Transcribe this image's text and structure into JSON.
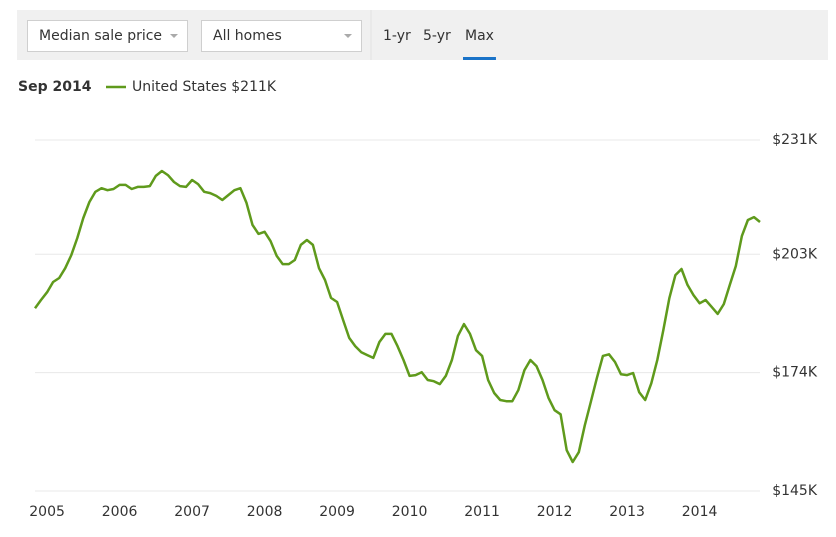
{
  "controls": {
    "metric": "Median sale price",
    "home_type": "All homes",
    "ranges": [
      "1-yr",
      "5-yr",
      "Max"
    ],
    "selected_range": 2
  },
  "chart_data": {
    "type": "line",
    "legend": {
      "date": "Sep 2014",
      "value_label": "$211K"
    },
    "categories": [
      null,
      null,
      "2005",
      null,
      null,
      null,
      null,
      null,
      null,
      null,
      null,
      null,
      null,
      null,
      "2006",
      null,
      null,
      null,
      null,
      null,
      null,
      null,
      null,
      null,
      null,
      null,
      "2007",
      null,
      null,
      null,
      null,
      null,
      null,
      null,
      null,
      null,
      null,
      null,
      "2008",
      null,
      null,
      null,
      null,
      null,
      null,
      null,
      null,
      null,
      null,
      null,
      "2009",
      null,
      null,
      null,
      null,
      null,
      null,
      null,
      null,
      null,
      null,
      null,
      "2010",
      null,
      null,
      null,
      null,
      null,
      null,
      null,
      null,
      null,
      null,
      null,
      "2011",
      null,
      null,
      null,
      null,
      null,
      null,
      null,
      null,
      null,
      null,
      null,
      "2012",
      null,
      null,
      null,
      null,
      null,
      null,
      null,
      null,
      null,
      null,
      null,
      "2013",
      null,
      null,
      null,
      null,
      null,
      null,
      null,
      null,
      null,
      null,
      null,
      "2014",
      null,
      null,
      null,
      null,
      null,
      null,
      null,
      null,
      null,
      null
    ],
    "series": [
      {
        "name": "United States",
        "color": "#5f9a1c",
        "values": [
          189.8,
          191.8,
          193.7,
          196.2,
          197.2,
          199.6,
          202.8,
          207.0,
          211.9,
          215.8,
          218.3,
          219.2,
          218.7,
          219.0,
          220.0,
          220.0,
          219.0,
          219.5,
          219.5,
          219.7,
          222.2,
          223.4,
          222.4,
          220.7,
          219.7,
          219.5,
          221.2,
          220.2,
          218.3,
          218.0,
          217.3,
          216.3,
          217.5,
          218.7,
          219.2,
          215.6,
          210.2,
          208.0,
          208.5,
          206.2,
          202.6,
          200.6,
          200.6,
          201.6,
          205.3,
          206.5,
          205.3,
          199.6,
          196.7,
          192.3,
          191.3,
          186.9,
          182.5,
          180.5,
          179.0,
          178.3,
          177.6,
          181.5,
          183.5,
          183.5,
          180.5,
          177.1,
          173.2,
          173.4,
          174.1,
          172.2,
          171.9,
          171.2,
          173.2,
          177.1,
          183.0,
          185.9,
          183.5,
          179.5,
          178.1,
          172.2,
          169.0,
          167.3,
          167.0,
          167.0,
          169.7,
          174.6,
          177.1,
          175.6,
          172.2,
          167.8,
          164.8,
          163.8,
          155.0,
          152.1,
          154.5,
          161.1,
          166.8,
          172.7,
          178.1,
          178.5,
          176.6,
          173.6,
          173.4,
          173.9,
          169.2,
          167.3,
          171.4,
          177.1,
          184.4,
          192.3,
          197.9,
          199.4,
          195.5,
          193.0,
          191.0,
          191.8,
          190.1,
          188.4,
          190.8,
          195.5,
          200.1,
          207.5,
          211.4,
          212.1,
          210.9
        ]
      }
    ],
    "ylim": [
      145,
      231
    ],
    "yticks": [
      {
        "value": 231,
        "label": "$231K"
      },
      {
        "value": 203,
        "label": "$203K"
      },
      {
        "value": 174,
        "label": "$174K"
      },
      {
        "value": 145,
        "label": "$145K"
      }
    ],
    "grid": true
  }
}
